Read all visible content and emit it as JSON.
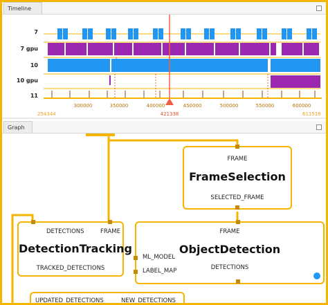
{
  "timeline": {
    "tab_label": "Timeline",
    "tracks": [
      "7",
      "7 gpu",
      "10",
      "10 gpu",
      "11"
    ],
    "axis_ticks": [
      "300000",
      "350000",
      "400000",
      "450000",
      "500000",
      "550000",
      "600000"
    ],
    "range_start": "254344",
    "range_end": "611516",
    "cursor_value": "421338"
  },
  "graph": {
    "tab_label": "Graph",
    "nodes": {
      "frame_selection": {
        "title": "FrameSelection",
        "input": "FRAME",
        "output": "SELECTED_FRAME"
      },
      "detection_tracking": {
        "title": "DetectionTracking",
        "input_left": "DETECTIONS",
        "input_right": "FRAME",
        "output": "TRACKED_DETECTIONS"
      },
      "object_detection": {
        "title": "ObjectDetection",
        "input": "FRAME",
        "side_inputs": [
          "ML_MODEL",
          "LABEL_MAP"
        ],
        "output": "DETECTIONS"
      },
      "bottom_node": {
        "port_left": "UPDATED_DETECTIONS",
        "port_right": "NEW_DETECTIONS"
      }
    }
  },
  "colors": {
    "accent": "#f4b400",
    "cpu_bar": "#2196f3",
    "gpu_bar": "#9c27b0",
    "cursor": "#f06040",
    "status_dot": "#2196f3"
  }
}
